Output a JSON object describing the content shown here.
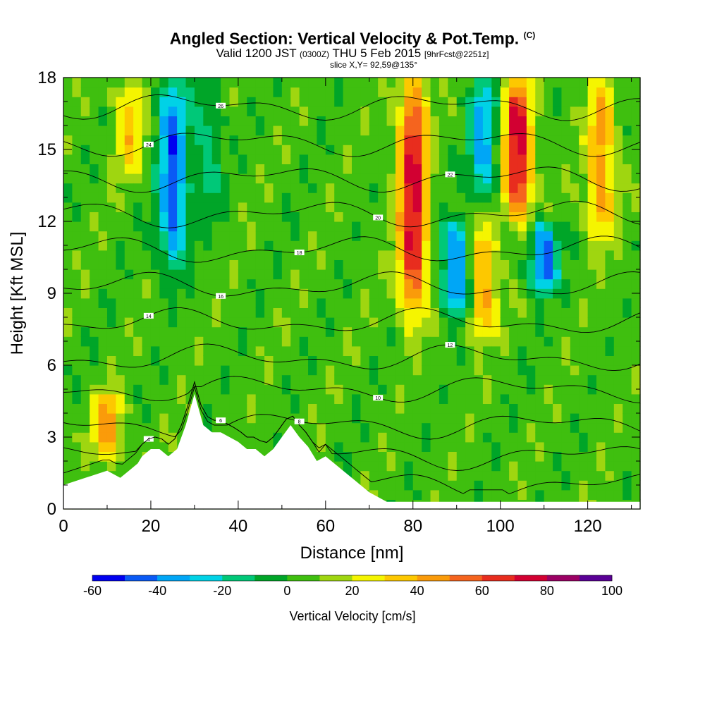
{
  "title": {
    "main": "Angled Section: Vertical Velocity & Pot.Temp.",
    "copyright": "(C)",
    "valid_prefix": "Valid 1200 JST",
    "valid_utc": "(0300Z)",
    "valid_date": "THU 5 Feb 2015",
    "forecast": "[9hrFcst@2251z]",
    "slice": "slice X,Y= 92,59@135°"
  },
  "colors": {
    "background": "#ffffff",
    "terrain": "#ffffff",
    "contour": "#000000"
  },
  "chart_data": {
    "type": "heatmap",
    "xlabel": "Distance [nm]",
    "ylabel": "Height [Kft MSL]",
    "xlim": [
      0,
      132
    ],
    "ylim": [
      0,
      18
    ],
    "x_ticks": [
      0,
      20,
      40,
      60,
      80,
      100,
      120
    ],
    "y_ticks": [
      0,
      3,
      6,
      9,
      12,
      15,
      18
    ],
    "colorbar": {
      "label": "Vertical Velocity [cm/s]",
      "min": -60,
      "max": 100,
      "step": 10,
      "tick_labels": [
        -60,
        -40,
        -20,
        0,
        20,
        40,
        60,
        80,
        100
      ],
      "colors": [
        "#0000f0",
        "#0a5af5",
        "#00a6f6",
        "#00d2e6",
        "#00c878",
        "#00a528",
        "#3fbf0f",
        "#9fd610",
        "#f5f500",
        "#fdc800",
        "#fa9b0a",
        "#f5641e",
        "#e82d1e",
        "#d20032",
        "#9b0064",
        "#5a0096"
      ]
    },
    "updraft_columns": [
      {
        "x": 10,
        "z_range": [
          2,
          5
        ],
        "peak": 40
      },
      {
        "x": 15,
        "z_range": [
          14,
          18
        ],
        "peak": 30
      },
      {
        "x": 80,
        "z_range": [
          8,
          18
        ],
        "peak": 70
      },
      {
        "x": 96,
        "z_range": [
          7,
          12
        ],
        "peak": 40
      },
      {
        "x": 104,
        "z_range": [
          12,
          18
        ],
        "peak": 70
      },
      {
        "x": 123,
        "z_range": [
          11,
          18
        ],
        "peak": 40
      }
    ],
    "downdraft_columns": [
      {
        "x": 25,
        "z_range": [
          10,
          18
        ],
        "peak": -50
      },
      {
        "x": 33,
        "z_range": [
          12,
          18
        ],
        "peak": -20
      },
      {
        "x": 90,
        "z_range": [
          8,
          12
        ],
        "peak": -50
      },
      {
        "x": 96,
        "z_range": [
          13,
          18
        ],
        "peak": -40
      },
      {
        "x": 110,
        "z_range": [
          9,
          12
        ],
        "peak": -50
      }
    ],
    "terrain_profile": {
      "x": [
        0,
        5,
        10,
        13,
        15,
        17,
        18,
        20,
        22,
        24,
        26,
        28,
        30,
        32,
        34,
        36,
        38,
        40,
        42,
        44,
        46,
        48,
        50,
        52,
        54,
        56,
        58,
        60,
        62,
        64,
        66,
        68,
        70,
        72,
        74,
        80,
        132
      ],
      "z": [
        1,
        1.3,
        1.6,
        1.3,
        1.6,
        1.9,
        2.2,
        2.5,
        2.5,
        2.2,
        2.5,
        3.5,
        4.8,
        3.5,
        3.2,
        3.2,
        3.0,
        2.8,
        2.5,
        2.5,
        2.2,
        2.5,
        3.0,
        3.5,
        3.0,
        2.6,
        2.0,
        2.2,
        1.9,
        1.6,
        1.3,
        1.0,
        0.7,
        0.5,
        0.3,
        0.3,
        0.3
      ]
    },
    "isentropes": [
      {
        "label": "4",
        "z": 1.0
      },
      {
        "label": "6",
        "z": 2.2
      },
      {
        "label": "8",
        "z": 3.5
      },
      {
        "label": "10",
        "z": 5.0
      },
      {
        "label": "12",
        "z": 6.3
      },
      {
        "label": "14",
        "z": 7.8
      },
      {
        "label": "16",
        "z": 9.3
      },
      {
        "label": "18",
        "z": 10.8
      },
      {
        "label": "20",
        "z": 12.3
      },
      {
        "label": "22",
        "z": 13.8
      },
      {
        "label": "24",
        "z": 15.3
      },
      {
        "label": "26",
        "z": 16.8
      }
    ]
  }
}
